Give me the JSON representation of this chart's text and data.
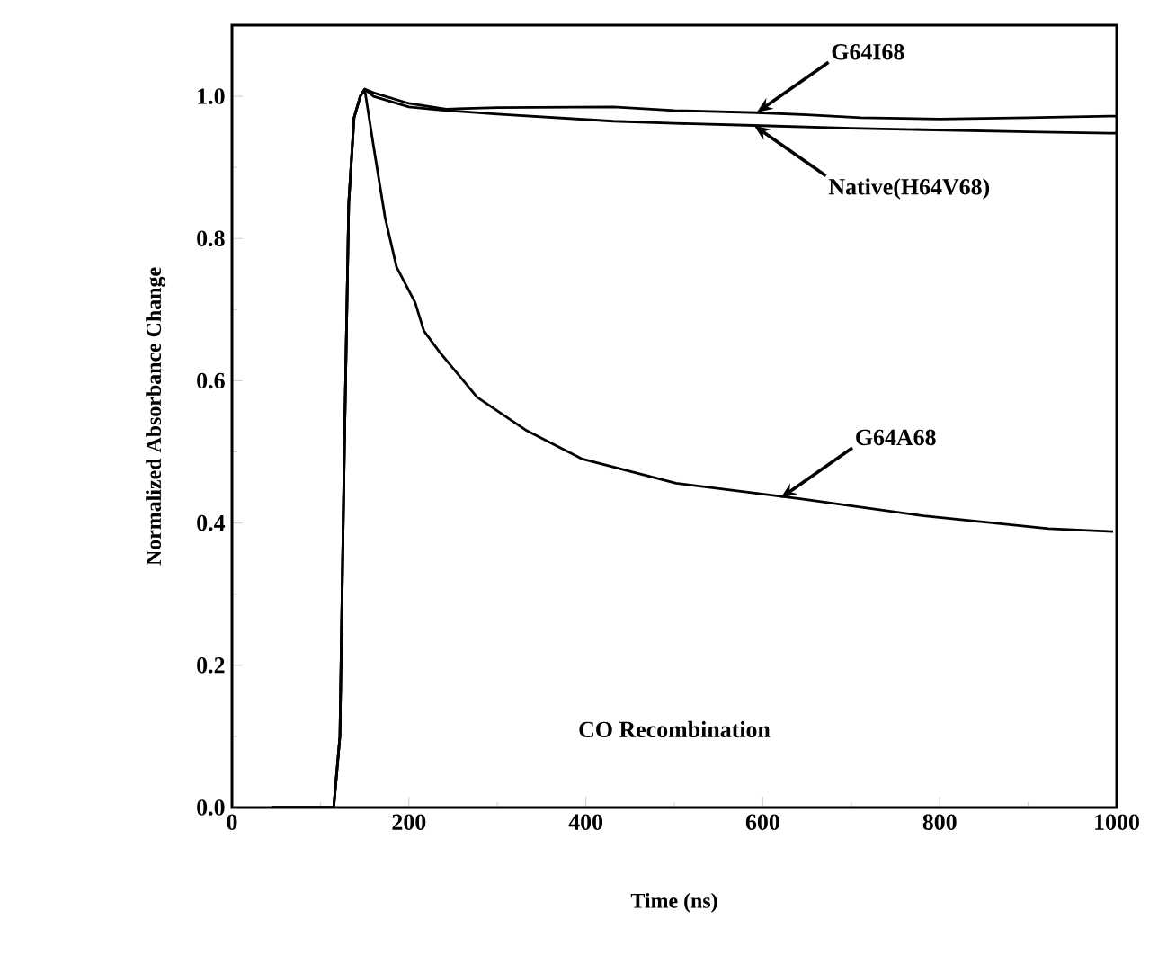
{
  "chart_data": {
    "type": "line",
    "xlabel": "Time (ns)",
    "ylabel": "Normalized Absorbance Change",
    "xlim": [
      0,
      1000
    ],
    "ylim": [
      0,
      1.1
    ],
    "xticks": [
      0,
      200,
      400,
      600,
      800,
      1000
    ],
    "yticks": [
      {
        "value": 0,
        "label": "0.0"
      },
      0.2,
      0.4,
      0.6,
      0.8,
      {
        "value": 1,
        "label": "1.0"
      }
    ],
    "grid": false,
    "marker": "none",
    "line_style": "solid",
    "series": [
      {
        "color": "#000000",
        "x": [
          45,
          115,
          122,
          127,
          132,
          138,
          145,
          150,
          160,
          200,
          242,
          300,
          431,
          500,
          593,
          650,
          711,
          800,
          900,
          992,
          1000
        ],
        "values": [
          0,
          0,
          0.1,
          0.5,
          0.85,
          0.97,
          1.0,
          1.01,
          1.005,
          0.99,
          0.982,
          0.984,
          0.985,
          0.98,
          0.977,
          0.974,
          0.97,
          0.968,
          0.97,
          0.972,
          0.972
        ]
      },
      {
        "color": "#000000",
        "x": [
          45,
          115,
          122,
          127,
          132,
          138,
          145,
          150,
          160,
          200,
          242,
          300,
          431,
          500,
          590,
          700,
          782,
          900,
          992,
          1000
        ],
        "values": [
          0,
          0,
          0.1,
          0.5,
          0.85,
          0.97,
          1.0,
          1.01,
          1.0,
          0.985,
          0.98,
          0.975,
          0.965,
          0.962,
          0.959,
          0.955,
          0.953,
          0.95,
          0.948,
          0.948
        ]
      },
      {
        "color": "#000000",
        "x": [
          45,
          115,
          122,
          127,
          132,
          138,
          145,
          150,
          160,
          173,
          186,
          207,
          217,
          235,
          277,
          333,
          396,
          502,
          642,
          782,
          923,
          996
        ],
        "values": [
          0,
          0,
          0.1,
          0.5,
          0.85,
          0.97,
          1.0,
          1.01,
          0.93,
          0.83,
          0.76,
          0.71,
          0.67,
          0.64,
          0.577,
          0.53,
          0.49,
          0.456,
          0.434,
          0.41,
          0.392,
          0.388
        ]
      }
    ],
    "annotations": [
      {
        "text": "G64I68",
        "x": 593,
        "y": 0.977
      },
      {
        "text": "Native(H64V68)",
        "x": 590,
        "y": 0.959
      },
      {
        "text": "G64A68",
        "x": 620,
        "y": 0.435
      },
      "CO Recombination"
    ]
  }
}
